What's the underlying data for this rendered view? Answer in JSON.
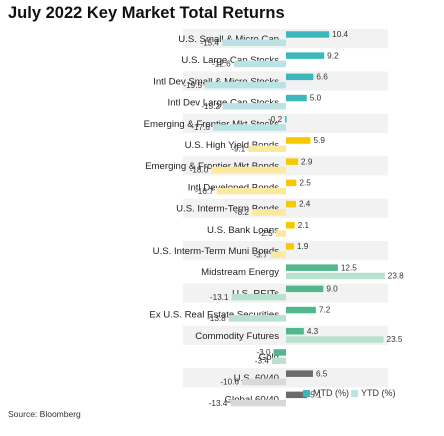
{
  "chart_data": {
    "type": "bar",
    "orientation": "horizontal",
    "title": "July 2022 Key Market Total Returns",
    "categories": [
      "U.S. Small & Micro Cap",
      "U.S. Large Cap Stocks",
      "Intl Dev Small & Micro Stocks",
      "Intl Dev Large Cap Stocks",
      "Emerging & Frontier Mkt Stocks",
      "U.S. High Yield Bonds",
      "Emerging & Frontier Mkt Bonds",
      "Intl Developed Bonds",
      "U.S. Interm-Term Bonds",
      "U.S. Bank Loans",
      "U.S. Interm-Term Muni Bonds",
      "Midstream Energy",
      "U.S. REITs",
      "Ex U.S. Real Estate Securities",
      "Commodity Futures",
      "Gold",
      "U.S. 60/40",
      "Global 60/40"
    ],
    "series": [
      {
        "name": "MTD (%)",
        "values": [
          10.4,
          9.2,
          6.6,
          5.0,
          -0.2,
          5.9,
          2.9,
          2.5,
          2.4,
          2.1,
          1.9,
          12.5,
          9.0,
          7.2,
          4.3,
          -3.0,
          6.5,
          5.1
        ]
      },
      {
        "name": "YTD (%)",
        "values": [
          -15.4,
          -12.6,
          -19.5,
          -15.2,
          -17.6,
          -9.1,
          -18.0,
          -16.7,
          -8.2,
          -2.5,
          -3.7,
          23.8,
          -13.1,
          -13.8,
          23.5,
          -3.4,
          -10.6,
          -13.4
        ]
      }
    ],
    "group_colors": {
      "equity": {
        "mtd": "#3cb8bd",
        "ytd": "#b9e3e4"
      },
      "bonds": {
        "mtd": "#f5c800",
        "ytd": "#fbe9a0"
      },
      "real_assets": {
        "mtd": "#52b78d",
        "ytd": "#b8e2cf"
      },
      "balanced": {
        "mtd": "#6b6b6b",
        "ytd": "#d9d9d9"
      }
    },
    "category_groups": [
      "equity",
      "equity",
      "equity",
      "equity",
      "equity",
      "bonds",
      "bonds",
      "bonds",
      "bonds",
      "bonds",
      "bonds",
      "real_assets",
      "real_assets",
      "real_assets",
      "real_assets",
      "real_assets",
      "balanced",
      "balanced"
    ],
    "legend": {
      "placement": "bottom-right",
      "entries": [
        {
          "label": "MTD (%)",
          "color": "#3cb8bd"
        },
        {
          "label": "YTD (%)",
          "color": "#b9e3e4"
        }
      ]
    },
    "grid": false
  },
  "source": "Source: Bloomberg"
}
